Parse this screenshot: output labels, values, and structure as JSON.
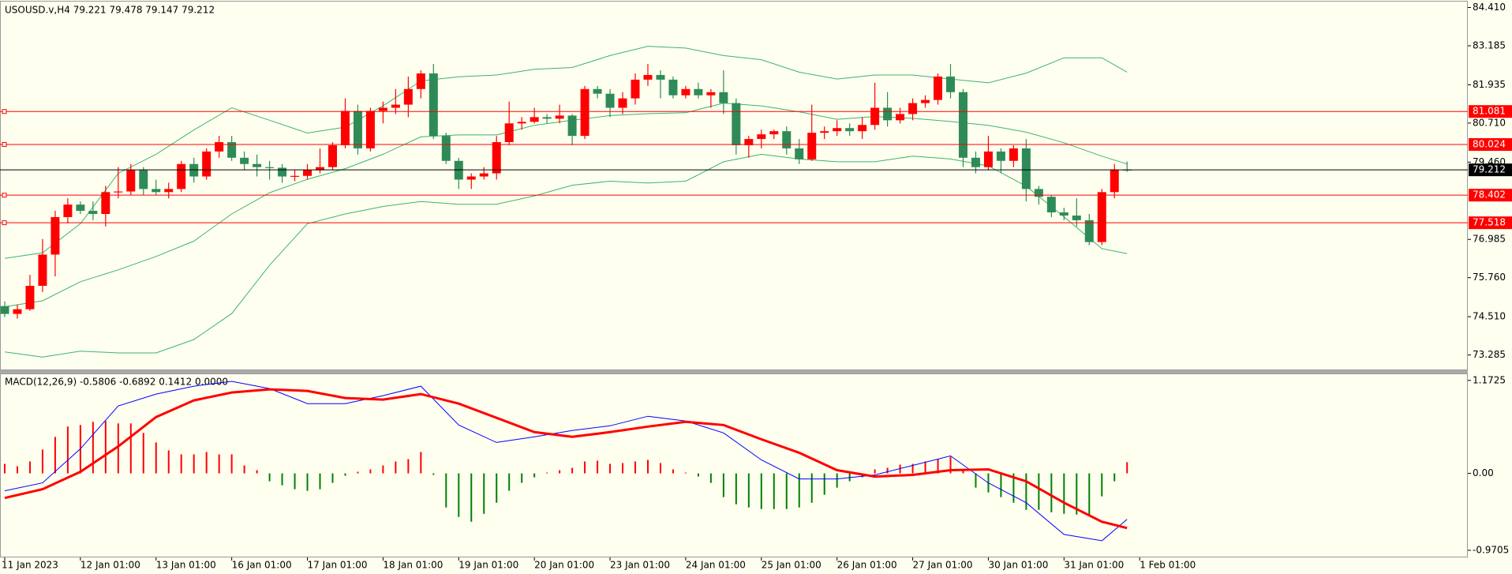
{
  "chart_data": [
    {
      "type": "candlestick",
      "title": "USOUSD.v,H4  79.221 79.478 79.147 79.212",
      "up_color": "#ff0000",
      "down_color": "#2e8b57",
      "candles": [
        [
          74.85,
          75.0,
          74.5,
          74.6
        ],
        [
          74.6,
          74.9,
          74.45,
          74.75
        ],
        [
          74.75,
          75.85,
          74.7,
          75.5
        ],
        [
          75.5,
          77.0,
          75.3,
          76.5
        ],
        [
          76.5,
          77.9,
          75.8,
          77.7
        ],
        [
          77.7,
          78.3,
          77.5,
          78.1
        ],
        [
          78.1,
          78.2,
          77.8,
          77.9
        ],
        [
          77.9,
          78.2,
          77.6,
          77.8
        ],
        [
          77.8,
          78.7,
          77.4,
          78.5
        ],
        [
          78.5,
          79.3,
          78.3,
          78.52
        ],
        [
          78.52,
          79.4,
          78.4,
          79.2
        ],
        [
          79.2,
          79.3,
          78.4,
          78.6
        ],
        [
          78.6,
          78.9,
          78.4,
          78.5
        ],
        [
          78.5,
          78.8,
          78.3,
          78.6
        ],
        [
          78.6,
          79.5,
          78.5,
          79.4
        ],
        [
          79.4,
          79.6,
          78.8,
          79.0
        ],
        [
          79.0,
          79.9,
          78.9,
          79.8
        ],
        [
          79.8,
          80.3,
          79.6,
          80.1
        ],
        [
          80.1,
          80.3,
          79.5,
          79.6
        ],
        [
          79.6,
          79.8,
          79.2,
          79.4
        ],
        [
          79.4,
          79.7,
          79.0,
          79.3
        ],
        [
          79.3,
          79.5,
          78.9,
          79.28
        ],
        [
          79.28,
          79.4,
          78.8,
          79.0
        ],
        [
          79.0,
          79.2,
          78.85,
          79.02
        ],
        [
          79.02,
          79.4,
          78.9,
          79.2
        ],
        [
          79.2,
          79.9,
          79.1,
          79.3
        ],
        [
          79.3,
          80.1,
          79.2,
          80.0
        ],
        [
          80.0,
          81.5,
          79.9,
          81.1
        ],
        [
          81.1,
          81.3,
          79.7,
          79.9
        ],
        [
          79.9,
          81.2,
          79.8,
          81.1
        ],
        [
          81.1,
          81.4,
          80.7,
          81.2
        ],
        [
          81.2,
          81.8,
          81.0,
          81.3
        ],
        [
          81.3,
          82.2,
          80.9,
          81.8
        ],
        [
          81.8,
          82.4,
          81.5,
          82.3
        ],
        [
          82.3,
          82.6,
          80.2,
          80.3
        ],
        [
          80.3,
          80.4,
          79.4,
          79.5
        ],
        [
          79.5,
          79.6,
          78.6,
          78.9
        ],
        [
          78.9,
          79.1,
          78.6,
          79.0
        ],
        [
          79.0,
          79.3,
          78.9,
          79.1
        ],
        [
          79.1,
          80.3,
          78.9,
          80.1
        ],
        [
          80.1,
          81.4,
          80.0,
          80.7
        ],
        [
          80.7,
          80.9,
          80.5,
          80.75
        ],
        [
          80.75,
          81.2,
          80.7,
          80.9
        ],
        [
          80.9,
          81.0,
          80.7,
          80.85
        ],
        [
          80.85,
          81.3,
          80.7,
          80.95
        ],
        [
          80.95,
          81.0,
          80.0,
          80.3
        ],
        [
          80.3,
          81.9,
          80.2,
          81.8
        ],
        [
          81.8,
          81.9,
          81.5,
          81.65
        ],
        [
          81.65,
          81.8,
          80.9,
          81.2
        ],
        [
          81.2,
          81.7,
          81.0,
          81.5
        ],
        [
          81.5,
          82.3,
          81.3,
          82.1
        ],
        [
          82.1,
          82.6,
          81.9,
          82.25
        ],
        [
          82.25,
          82.4,
          81.5,
          82.1
        ],
        [
          82.1,
          82.2,
          81.5,
          81.6
        ],
        [
          81.6,
          81.9,
          81.5,
          81.8
        ],
        [
          81.8,
          82.0,
          81.5,
          81.6
        ],
        [
          81.6,
          81.8,
          81.2,
          81.7
        ],
        [
          81.7,
          82.4,
          81.0,
          81.35
        ],
        [
          81.35,
          81.5,
          79.7,
          80.0
        ],
        [
          80.0,
          80.3,
          79.6,
          80.2
        ],
        [
          80.2,
          80.5,
          79.9,
          80.35
        ],
        [
          80.35,
          80.5,
          80.2,
          80.45
        ],
        [
          80.45,
          80.6,
          79.7,
          79.9
        ],
        [
          79.9,
          80.2,
          79.4,
          79.55
        ],
        [
          79.55,
          81.3,
          79.5,
          80.4
        ],
        [
          80.4,
          80.6,
          80.2,
          80.45
        ],
        [
          80.45,
          80.8,
          80.3,
          80.55
        ],
        [
          80.55,
          80.7,
          80.3,
          80.45
        ],
        [
          80.45,
          80.9,
          80.2,
          80.65
        ],
        [
          80.65,
          82.0,
          80.5,
          81.2
        ],
        [
          81.2,
          81.7,
          80.6,
          80.8
        ],
        [
          80.8,
          81.2,
          80.7,
          81.0
        ],
        [
          81.0,
          81.5,
          80.8,
          81.35
        ],
        [
          81.35,
          81.6,
          81.2,
          81.45
        ],
        [
          81.45,
          82.3,
          81.3,
          82.2
        ],
        [
          82.2,
          82.6,
          81.5,
          81.7
        ],
        [
          81.7,
          81.8,
          79.3,
          79.6
        ],
        [
          79.6,
          79.8,
          79.1,
          79.3
        ],
        [
          79.3,
          80.3,
          79.2,
          79.8
        ],
        [
          79.8,
          79.9,
          79.1,
          79.5
        ],
        [
          79.5,
          80.0,
          79.3,
          79.9
        ],
        [
          79.9,
          80.2,
          78.2,
          78.6
        ],
        [
          78.6,
          78.7,
          78.1,
          78.35
        ],
        [
          78.35,
          78.4,
          77.7,
          77.85
        ],
        [
          77.85,
          78.0,
          77.6,
          77.75
        ],
        [
          77.75,
          78.3,
          77.4,
          77.6
        ],
        [
          77.6,
          77.8,
          76.8,
          76.9
        ],
        [
          76.9,
          78.6,
          76.8,
          78.5
        ],
        [
          78.5,
          79.4,
          78.3,
          79.221
        ],
        [
          79.221,
          79.478,
          79.147,
          79.212
        ]
      ],
      "bands": {
        "x": [
          0,
          3,
          6,
          9,
          12,
          15,
          18,
          21,
          24,
          27,
          30,
          33,
          36,
          39,
          42,
          45,
          48,
          51,
          54,
          57,
          60,
          63,
          66,
          69,
          72,
          75,
          78,
          81,
          84,
          87,
          89
        ],
        "series": [
          {
            "color": "#3cb371",
            "values": [
              76.38,
              76.56,
              77.49,
              79.1,
              79.71,
              80.49,
              81.2,
              80.8,
              80.39,
              80.58,
              81.26,
              82.06,
              82.19,
              82.25,
              82.43,
              82.49,
              82.87,
              83.17,
              83.11,
              82.87,
              82.74,
              82.34,
              82.12,
              82.25,
              82.25,
              82.12,
              82.0,
              82.31,
              82.8,
              82.8,
              82.34
            ]
          },
          {
            "color": "#3cb371",
            "values": [
              74.83,
              75.02,
              75.63,
              76.01,
              76.44,
              76.93,
              77.8,
              78.48,
              78.91,
              79.25,
              79.71,
              80.27,
              80.33,
              80.33,
              80.64,
              80.8,
              80.95,
              81.01,
              81.04,
              81.35,
              81.26,
              81.07,
              80.83,
              80.92,
              80.86,
              80.76,
              80.64,
              80.42,
              80.08,
              79.65,
              79.4
            ]
          },
          {
            "color": "#3cb371",
            "values": [
              73.38,
              73.22,
              73.41,
              73.35,
              73.35,
              73.78,
              74.61,
              76.16,
              77.49,
              77.8,
              78.04,
              78.2,
              78.11,
              78.11,
              78.38,
              78.72,
              78.85,
              78.79,
              78.85,
              79.47,
              79.71,
              79.56,
              79.47,
              79.47,
              79.65,
              79.56,
              79.34,
              78.69,
              77.71,
              76.69,
              76.53
            ]
          }
        ]
      },
      "levels": [
        81.081,
        80.024,
        78.402,
        77.518
      ],
      "level_color": "#ff0000",
      "current_price": 79.212,
      "current_color": "#000000",
      "ylim": [
        72.82,
        84.6
      ],
      "yticks": [
        {
          "value": 84.41,
          "label": "84.410"
        },
        83.185,
        81.935,
        {
          "value": 80.71,
          "label": "80.710"
        },
        {
          "value": 79.46,
          "label": "79.460"
        },
        76.985,
        {
          "value": 75.76,
          "label": "75.760"
        },
        {
          "value": 74.51,
          "label": "74.510"
        },
        73.285
      ],
      "x_labels": [
        "11 Jan 2023",
        "12 Jan 01:00",
        "13 Jan 01:00",
        "16 Jan 01:00",
        "17 Jan 01:00",
        "18 Jan 01:00",
        "19 Jan 01:00",
        "20 Jan 01:00",
        "23 Jan 01:00",
        "24 Jan 01:00",
        "25 Jan 01:00",
        "26 Jan 01:00",
        "27 Jan 01:00",
        "30 Jan 01:00",
        "31 Jan 01:00",
        "1 Feb 01:00"
      ]
    },
    {
      "type": "macd",
      "title": "MACD(12,26,9) -0.5806 -0.6892 0.1412 0.0000",
      "x": [
        0,
        3,
        6,
        9,
        12,
        15,
        18,
        21,
        24,
        27,
        30,
        33,
        36,
        39,
        42,
        45,
        48,
        51,
        54,
        57,
        60,
        63,
        66,
        69,
        72,
        75,
        78,
        81,
        84,
        87,
        89
      ],
      "series": [
        {
          "color": "#0000ff",
          "width": 1,
          "values": [
            -0.22,
            -0.12,
            0.31,
            0.85,
            1.0,
            1.1,
            1.16,
            1.07,
            0.88,
            0.88,
            0.98,
            1.1,
            0.61,
            0.39,
            0.46,
            0.54,
            0.6,
            0.72,
            0.66,
            0.51,
            0.17,
            -0.07,
            -0.07,
            -0.02,
            0.1,
            0.22,
            -0.12,
            -0.37,
            -0.77,
            -0.85,
            -0.58
          ]
        },
        {
          "color": "#ff0000",
          "width": 3,
          "values": [
            -0.31,
            -0.2,
            0.02,
            0.34,
            0.71,
            0.92,
            1.02,
            1.06,
            1.04,
            0.95,
            0.93,
            1.0,
            0.88,
            0.7,
            0.52,
            0.46,
            0.52,
            0.59,
            0.65,
            0.61,
            0.43,
            0.26,
            0.04,
            -0.04,
            -0.02,
            0.04,
            0.05,
            -0.1,
            -0.37,
            -0.61,
            -0.69
          ]
        }
      ],
      "histogram": [
        0.12,
        0.09,
        0.15,
        0.3,
        0.46,
        0.59,
        0.61,
        0.65,
        0.66,
        0.63,
        0.63,
        0.51,
        0.39,
        0.29,
        0.24,
        0.24,
        0.27,
        0.24,
        0.24,
        0.1,
        0.04,
        -0.1,
        -0.15,
        -0.2,
        -0.22,
        -0.2,
        -0.12,
        -0.03,
        0.02,
        0.05,
        0.1,
        0.15,
        0.18,
        0.27,
        -0.02,
        -0.43,
        -0.55,
        -0.61,
        -0.51,
        -0.37,
        -0.22,
        -0.12,
        -0.05,
        0.01,
        0.04,
        0.07,
        0.15,
        0.16,
        0.12,
        0.13,
        0.15,
        0.17,
        0.13,
        0.05,
        0.01,
        -0.04,
        -0.12,
        -0.3,
        -0.39,
        -0.43,
        -0.45,
        -0.45,
        -0.45,
        -0.43,
        -0.37,
        -0.27,
        -0.18,
        -0.1,
        -0.05,
        0.05,
        0.07,
        0.11,
        0.12,
        0.15,
        0.18,
        0.21,
        0.04,
        -0.18,
        -0.24,
        -0.3,
        -0.37,
        -0.46,
        -0.46,
        -0.49,
        -0.51,
        -0.52,
        -0.54,
        -0.29,
        -0.1,
        0.1412
      ],
      "up_color": "#ff0000",
      "down_color": "#008000",
      "ylim": [
        -1.06,
        1.25
      ],
      "yticks": [
        1.1725,
        {
          "value": 0,
          "label": "0.00"
        },
        -0.9705
      ]
    }
  ]
}
